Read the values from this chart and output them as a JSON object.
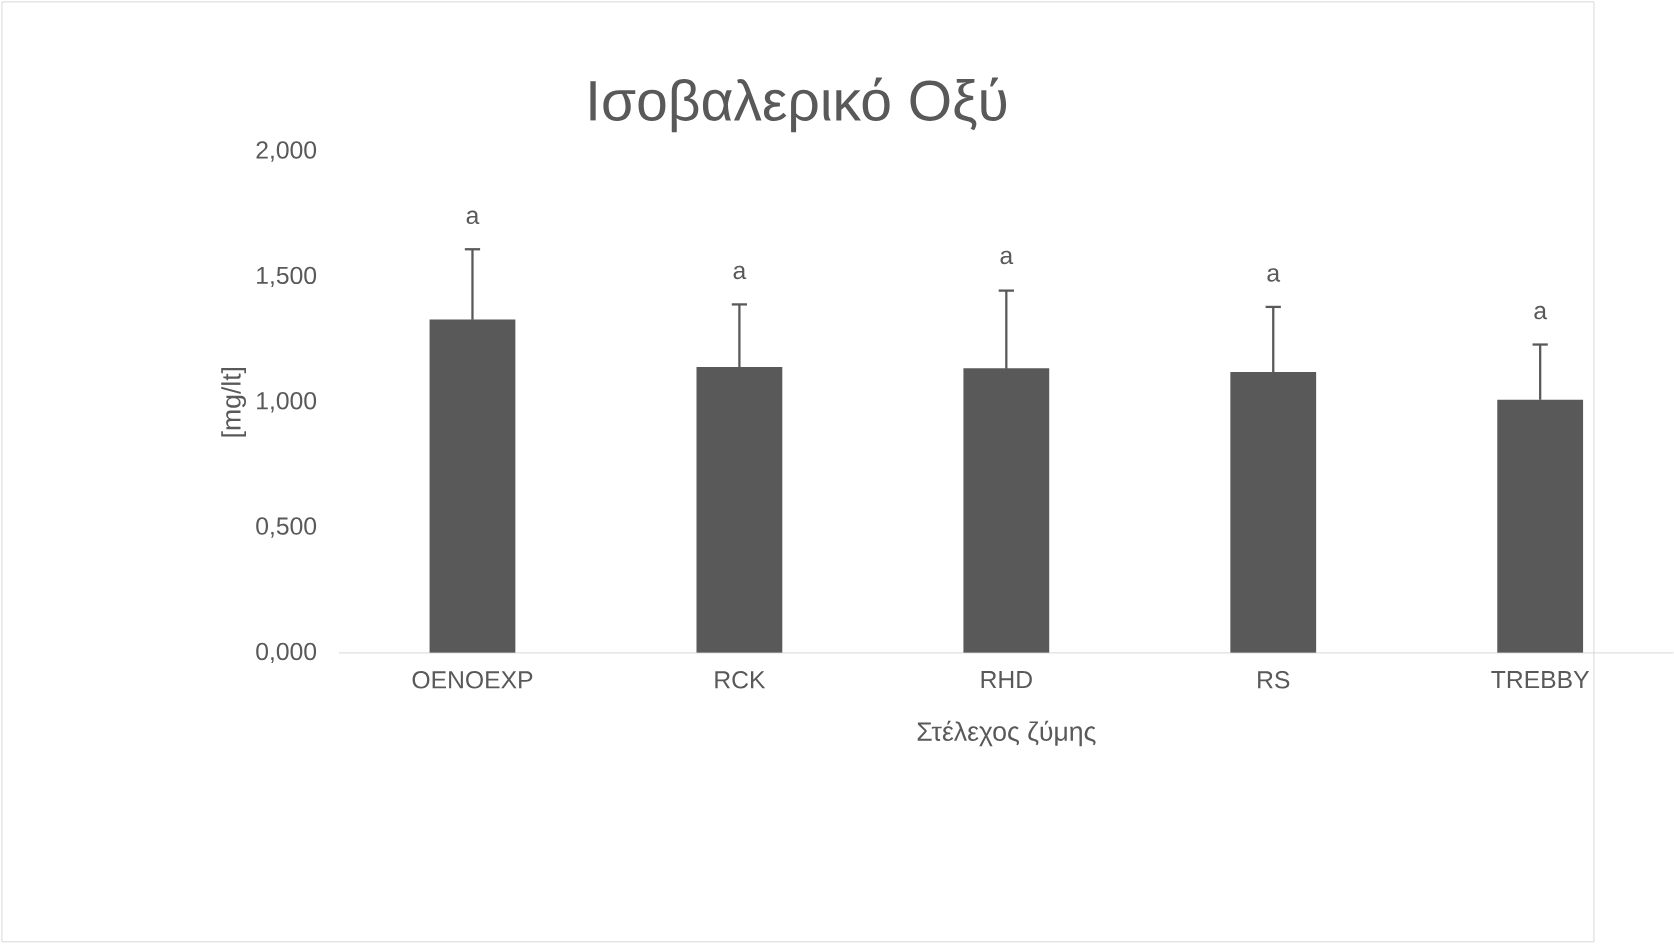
{
  "chart_data": {
    "type": "bar",
    "title": "Ισοβαλερικό Οξύ",
    "xlabel": "Στέλεχος ζύμης",
    "ylabel": "[mg/lt]",
    "categories": [
      "OENOEXP",
      "RCK",
      "RHD",
      "RS",
      "TREBBY"
    ],
    "values": [
      1.33,
      1.14,
      1.135,
      1.12,
      1.01
    ],
    "errors": [
      0.28,
      0.25,
      0.31,
      0.26,
      0.22
    ],
    "color": "#595959",
    "ylim": [
      0,
      2
    ],
    "yticks": [
      {
        "value": 0,
        "label": "0,000"
      },
      {
        "value": 0.5,
        "label": "0,500"
      },
      {
        "value": 1,
        "label": "1,000"
      },
      {
        "value": 1.5,
        "label": "1,500"
      },
      {
        "value": 2,
        "label": "2,000"
      }
    ],
    "grid": false,
    "annotations": [
      {
        "text": "a",
        "x": "OENOEXP",
        "y": 1.61
      },
      {
        "text": "a",
        "x": "RCK",
        "y": 1.39
      },
      {
        "text": "a",
        "x": "RHD",
        "y": 1.45
      },
      {
        "text": "a",
        "x": "RS",
        "y": 1.38
      },
      {
        "text": "a",
        "x": "TREBBY",
        "y": 1.23
      }
    ]
  }
}
